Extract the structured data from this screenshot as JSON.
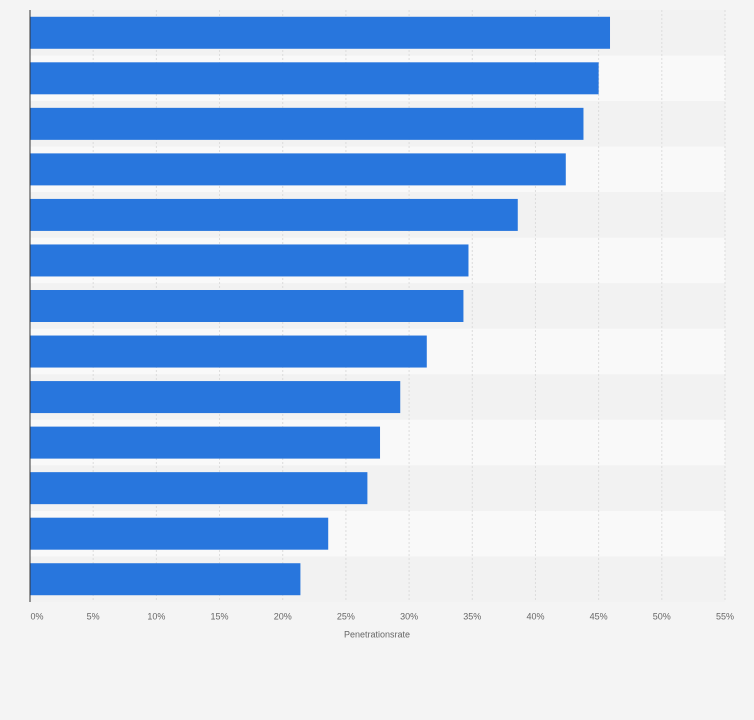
{
  "chart_data": {
    "type": "bar",
    "orientation": "horizontal",
    "x_label": "Penetrationsrate",
    "categories": [
      null,
      null,
      null,
      null,
      null,
      null,
      null,
      null,
      null,
      null,
      null,
      null,
      null
    ],
    "values": [
      45.9,
      45.0,
      43.8,
      42.4,
      38.6,
      34.7,
      34.3,
      31.4,
      29.3,
      27.7,
      26.7,
      23.6,
      21.4
    ],
    "color": "#2876dd",
    "xlim": [
      0,
      55
    ],
    "xticks": [
      {
        "value": 0,
        "label": "0%"
      },
      {
        "value": 5,
        "label": "5%"
      },
      {
        "value": 10,
        "label": "10%"
      },
      {
        "value": 15,
        "label": "15%"
      },
      {
        "value": 20,
        "label": "20%"
      },
      {
        "value": 25,
        "label": "25%"
      },
      {
        "value": 30,
        "label": "30%"
      },
      {
        "value": 35,
        "label": "35%"
      },
      {
        "value": 40,
        "label": "40%"
      },
      {
        "value": 45,
        "label": "45%"
      },
      {
        "value": 50,
        "label": "50%"
      },
      {
        "value": 55,
        "label": "55%"
      }
    ],
    "grid": true
  }
}
